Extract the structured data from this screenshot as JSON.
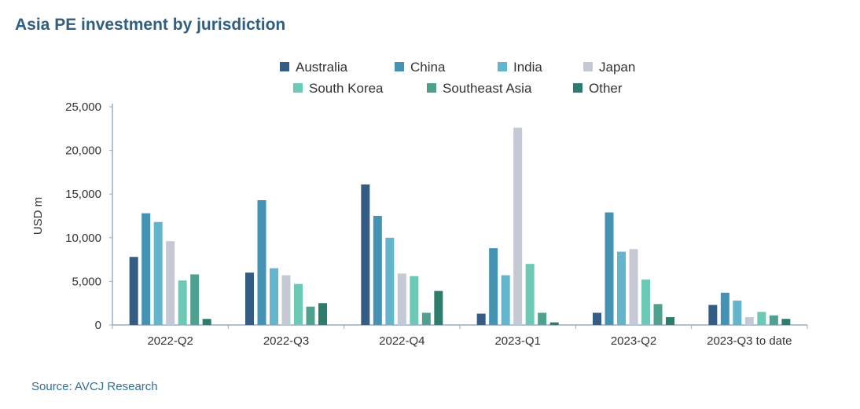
{
  "header": {
    "title": "Asia PE investment by jurisdiction"
  },
  "footer": {
    "source": "Source: AVCJ Research"
  },
  "chart_data": {
    "type": "bar",
    "title": "Asia PE investment by jurisdiction",
    "xlabel": "",
    "ylabel": "USD m",
    "ylim": [
      0,
      25000
    ],
    "yticks": [
      0,
      5000,
      10000,
      15000,
      20000,
      25000
    ],
    "ytick_labels": [
      "0",
      "5,000",
      "10,000",
      "15,000",
      "20,000",
      "25,000"
    ],
    "grid": false,
    "legend_position": "top-center",
    "categories": [
      "2022-Q2",
      "2022-Q3",
      "2022-Q4",
      "2023-Q1",
      "2023-Q2",
      "2023-Q3 to date"
    ],
    "series": [
      {
        "name": "Australia",
        "color": "#345d85",
        "values": [
          7800,
          6000,
          16100,
          1300,
          1400,
          2300
        ]
      },
      {
        "name": "China",
        "color": "#4492b4",
        "values": [
          12800,
          14300,
          12500,
          8800,
          12900,
          3700
        ]
      },
      {
        "name": "India",
        "color": "#64b5cc",
        "values": [
          11800,
          6500,
          10000,
          5700,
          8400,
          2800
        ]
      },
      {
        "name": "Japan",
        "color": "#c4c9d5",
        "values": [
          9600,
          5700,
          5900,
          22600,
          8700,
          900
        ]
      },
      {
        "name": "South Korea",
        "color": "#6cc9b5",
        "values": [
          5100,
          4700,
          5600,
          7000,
          5200,
          1500
        ]
      },
      {
        "name": "Southeast Asia",
        "color": "#4fa08f",
        "values": [
          5800,
          2100,
          1400,
          1400,
          2400,
          1100
        ]
      },
      {
        "name": "Other",
        "color": "#2e7d6c",
        "values": [
          700,
          2500,
          3900,
          300,
          900,
          700
        ]
      }
    ]
  }
}
